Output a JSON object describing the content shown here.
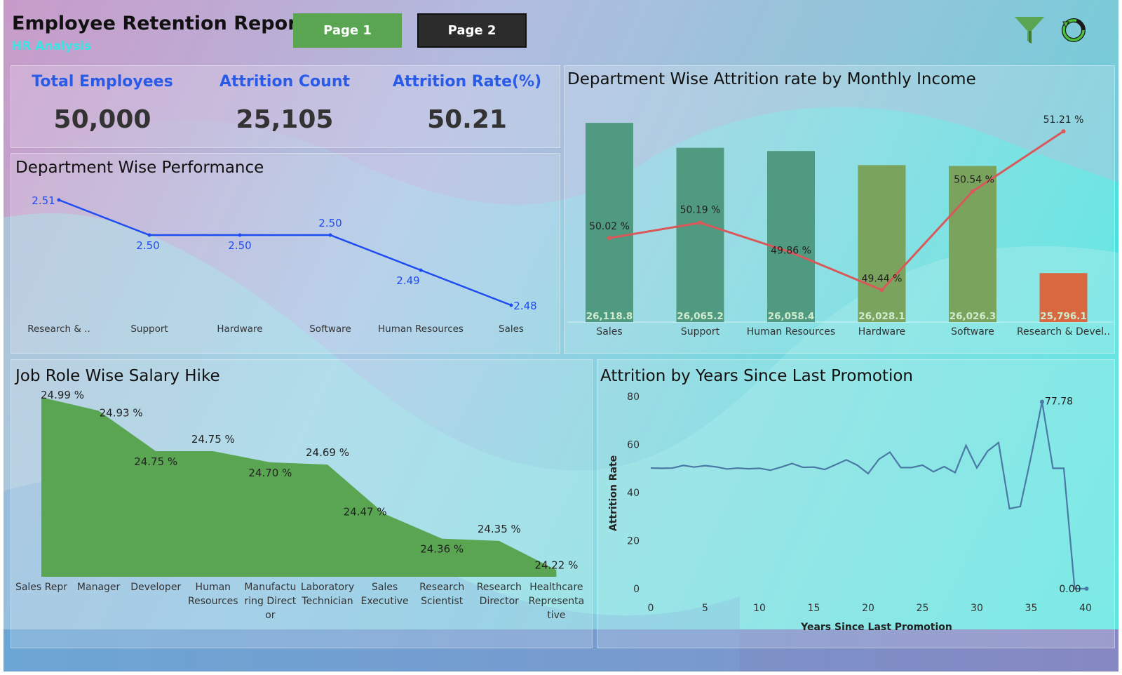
{
  "header": {
    "title": "Employee Retention Report",
    "subtitle": "HR Analysis",
    "page1_label": "Page 1",
    "page2_label": "Page 2",
    "filter_icon": "filter-funnel-icon",
    "refresh_icon": "refresh-icon",
    "colors": {
      "page1": "#5aa552",
      "page2": "#2c2c2c",
      "subtitle": "#39e6e4"
    }
  },
  "kpis": [
    {
      "label": "Total Employees",
      "value": "50,000"
    },
    {
      "label": "Attrition Count",
      "value": "25,105"
    },
    {
      "label": "Attrition Rate(%)",
      "value": "50.21"
    }
  ],
  "chart_data": [
    {
      "id": "dept_performance",
      "type": "line",
      "title": "Department Wise Performance",
      "categories": [
        "Research & ..",
        "Support",
        "Hardware",
        "Software",
        "Human Resources",
        "Sales"
      ],
      "values": [
        2.51,
        2.5,
        2.5,
        2.5,
        2.49,
        2.48
      ],
      "labels": [
        "2.51",
        "2.50",
        "2.50",
        "2.50",
        "2.49",
        "2.48"
      ],
      "color": "#1f4cf0"
    },
    {
      "id": "dept_attrition_income",
      "type": "bar",
      "title": "Department Wise Attrition rate by Monthly Income",
      "categories": [
        "Sales",
        "Support",
        "Human Resources",
        "Hardware",
        "Software",
        "Research & Devel.."
      ],
      "series": [
        {
          "values": [
            26118.8,
            26065.2,
            26058.4,
            26028.1,
            26026.3,
            25796.1
          ],
          "labels": [
            "26,118.8",
            "26,065.2",
            "26,058.4",
            "26,028.1",
            "26,026.3",
            "25,796.1"
          ],
          "colors": [
            "#4f9a80",
            "#4f9a80",
            "#4f9a80",
            "#7aa35e",
            "#7aa35e",
            "#d9673f"
          ]
        },
        {
          "values": [
            50.02,
            50.19,
            49.86,
            49.44,
            50.54,
            51.21
          ],
          "labels": [
            "50.02 %",
            "50.19 %",
            "49.86 %",
            "49.44 %",
            "50.54 %",
            "51.21 %"
          ],
          "color": "#d9595a"
        }
      ]
    },
    {
      "id": "jobrole_salary_hike",
      "type": "area",
      "title": "Job Role Wise Salary Hike",
      "categories": [
        "Sales Repr esentative",
        "Manager",
        "Developer",
        "Human Resources",
        "Manufactu ring Direct or",
        "Laboratory Technician",
        "Sales Executive",
        "Research Scientist",
        "Research Director",
        "Healthcare Representa tive"
      ],
      "values": [
        24.99,
        24.93,
        24.75,
        24.75,
        24.7,
        24.69,
        24.47,
        24.36,
        24.35,
        24.22
      ],
      "labels": [
        "24.99 %",
        "24.93 %",
        "24.75 %",
        "24.75 %",
        "24.70 %",
        "24.69 %",
        "24.47 %",
        "24.36 %",
        "24.35 %",
        "24.22 %"
      ],
      "color": "#5aa552"
    },
    {
      "id": "attrition_promotion",
      "type": "line",
      "title": "Attrition by Years Since Last Promotion",
      "xlabel": "Years Since Last Promotion",
      "ylabel": "Attrition Rate",
      "xlim": [
        0,
        40
      ],
      "ylim": [
        0,
        80
      ],
      "xticks": [
        "0",
        "5",
        "10",
        "15",
        "20",
        "25",
        "30",
        "35",
        "40"
      ],
      "yticks": [
        "0",
        "20",
        "40",
        "60",
        "80"
      ],
      "x": [
        0,
        1,
        2,
        3,
        4,
        5,
        6,
        7,
        8,
        9,
        10,
        11,
        12,
        13,
        14,
        15,
        16,
        17,
        18,
        19,
        20,
        21,
        22,
        23,
        24,
        25,
        26,
        27,
        28,
        29,
        30,
        31,
        32,
        33,
        34,
        35,
        36,
        37,
        38,
        39,
        40
      ],
      "y": [
        50.2,
        50.1,
        50.2,
        51.3,
        50.6,
        51.2,
        50.7,
        49.8,
        50.2,
        49.9,
        50.1,
        49.3,
        50.6,
        52.1,
        50.5,
        50.6,
        49.6,
        51.6,
        53.6,
        51.4,
        47.9,
        53.9,
        56.8,
        50.4,
        50.4,
        51.4,
        48.7,
        50.8,
        48.3,
        59.6,
        50.3,
        57.3,
        60.8,
        33.3,
        34.2,
        55.2,
        77.78,
        50.1,
        50.1,
        0.0,
        0.0
      ],
      "annotations": [
        "77.78",
        "0.00"
      ],
      "color": "#4a79a5"
    }
  ]
}
